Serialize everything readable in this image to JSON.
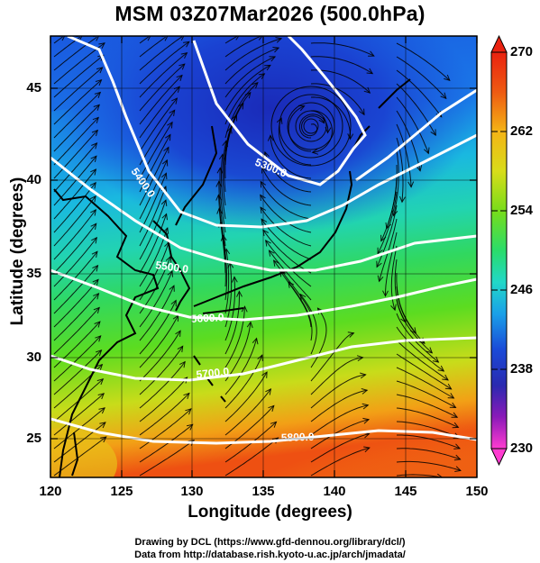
{
  "title": "MSM 03Z07Mar2026 (500.0hPa)",
  "chart_data": {
    "type": "map",
    "xlabel": "Longitude (degrees)",
    "ylabel": "Latitude  (degrees)",
    "xlim": [
      120,
      150
    ],
    "ylim": [
      22.4,
      47.6
    ],
    "x_ticks": [
      "120",
      "125",
      "130",
      "135",
      "140",
      "145",
      "150"
    ],
    "y_ticks": [
      "25",
      "30",
      "35",
      "40",
      "45"
    ],
    "colorbar": {
      "min": 230,
      "max": 270,
      "ticks": [
        "230",
        "238",
        "246",
        "254",
        "262",
        "270"
      ],
      "colors": [
        "#ff3cd0",
        "#8a1ab8",
        "#2a2ab0",
        "#1a4ad8",
        "#1aa0e8",
        "#22d8c8",
        "#2adc6a",
        "#78dc1a",
        "#d8dc1a",
        "#f4b416",
        "#ee5a12",
        "#ea2210"
      ]
    },
    "contours": [
      {
        "label": "5300.0",
        "height": 5300
      },
      {
        "label": "5400.0",
        "height": 5400
      },
      {
        "label": "5500.0",
        "height": 5500
      },
      {
        "label": "5600.0",
        "height": 5600
      },
      {
        "label": "5700.0",
        "height": 5700
      },
      {
        "label": "5800.0",
        "height": 5800
      }
    ],
    "grid": true
  },
  "credits": {
    "line1": "Drawing by DCL (https://www.gfd-dennou.org/library/dcl/)",
    "line2": "Data from http://database.rish.kyoto-u.ac.jp/arch/jmadata/"
  }
}
